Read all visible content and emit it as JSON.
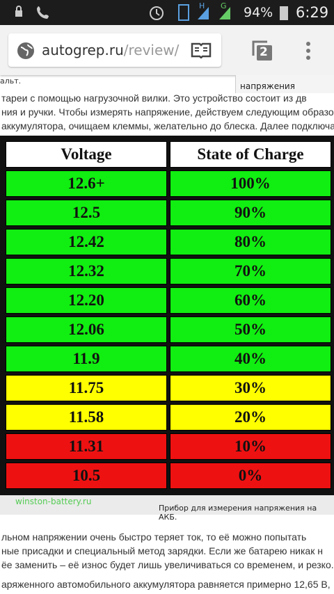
{
  "status_bar": {
    "network_1": "H",
    "network_2": "G",
    "battery": "94%",
    "time": "6:29"
  },
  "browser": {
    "url_host": "autogrep.ru",
    "url_path": "/review/",
    "tab_count": "2"
  },
  "article": {
    "top_fragment": "альт.",
    "top_caption": "напряжения",
    "paragraph_1": [
      "тареи с помощью нагрузочной вилки. Это устройство состоит из дв",
      "ния и ручки. Чтобы измерять напряжение, действуем следующим образо",
      "аккумулятора, очищаем клеммы, желательно до блеска. Далее подключае"
    ],
    "table": {
      "header": [
        "Voltage",
        "State of Charge"
      ],
      "rows": [
        {
          "cells": [
            "12.6+",
            "100%"
          ],
          "color": "#11ee11"
        },
        {
          "cells": [
            "12.5",
            "90%"
          ],
          "color": "#11ee11"
        },
        {
          "cells": [
            "12.42",
            "80%"
          ],
          "color": "#11ee11"
        },
        {
          "cells": [
            "12.32",
            "70%"
          ],
          "color": "#11ee11"
        },
        {
          "cells": [
            "12.20",
            "60%"
          ],
          "color": "#11ee11"
        },
        {
          "cells": [
            "12.06",
            "50%"
          ],
          "color": "#11ee11"
        },
        {
          "cells": [
            "11.9",
            "40%"
          ],
          "color": "#11ee11"
        },
        {
          "cells": [
            "11.75",
            "30%"
          ],
          "color": "#ffff00"
        },
        {
          "cells": [
            "11.58",
            "20%"
          ],
          "color": "#ffff00"
        },
        {
          "cells": [
            "11.31",
            "10%"
          ],
          "color": "#ee1111"
        },
        {
          "cells": [
            "10.5",
            "0%"
          ],
          "color": "#ee1111"
        }
      ]
    },
    "image_source": "winston-battery.ru",
    "image_caption": "Прибор для измерения напряжения на АКБ.",
    "paragraph_2": [
      "льном напряжении очень быстро теряет ток, то её можно попытать",
      "ные присадки и специальный метод зарядки. Если же батарею никак н",
      "ёе заменить – её износ будет лишь увеличиваться со временем, и резко."
    ],
    "paragraph_3": [
      "аряженного автомобильного аккумулятора равняется примерно 12,65 В,"
    ]
  }
}
